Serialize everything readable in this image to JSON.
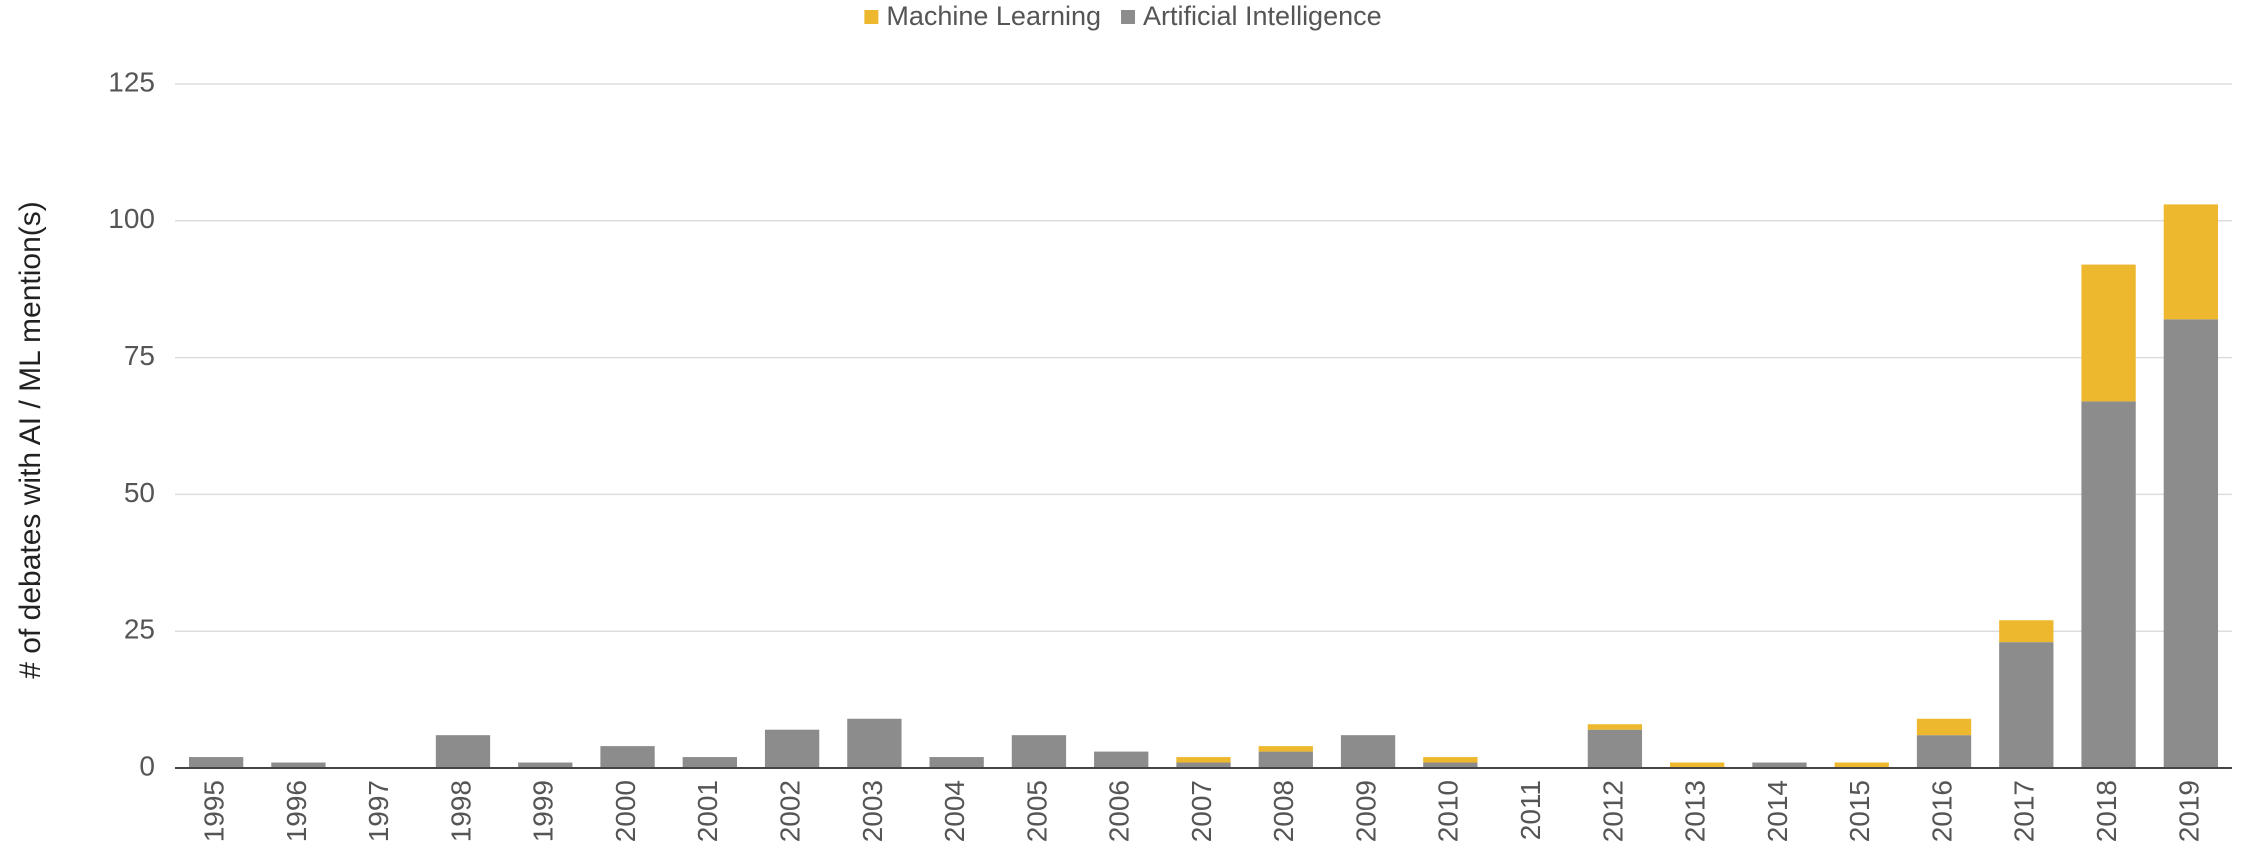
{
  "chart_data": {
    "type": "stacked_bar",
    "y_axis_label": "# of debates with AI / ML mention(s)",
    "categories": [
      "1995",
      "1996",
      "1997",
      "1998",
      "1999",
      "2000",
      "2001",
      "2002",
      "2003",
      "2004",
      "2005",
      "2006",
      "2007",
      "2008",
      "2009",
      "2010",
      "2011",
      "2012",
      "2013",
      "2014",
      "2015",
      "2016",
      "2017",
      "2018",
      "2019"
    ],
    "series": [
      {
        "name": "Machine Learning",
        "color": "#edb82d",
        "values": [
          0,
          0,
          0,
          0,
          0,
          0,
          0,
          0,
          0,
          0,
          0,
          0,
          1,
          1,
          0,
          1,
          0,
          1,
          1,
          0,
          1,
          3,
          4,
          25,
          21
        ]
      },
      {
        "name": "Artificial Intelligence",
        "color": "#8c8c8c",
        "values": [
          2,
          1,
          0,
          6,
          1,
          4,
          2,
          7,
          9,
          2,
          6,
          3,
          1,
          3,
          6,
          1,
          0,
          7,
          0,
          1,
          0,
          6,
          23,
          67,
          82
        ]
      }
    ],
    "ylim": [
      0,
      125
    ],
    "yticks": [
      0,
      25,
      50,
      75,
      100,
      125
    ],
    "grid": true,
    "legend": "top"
  }
}
